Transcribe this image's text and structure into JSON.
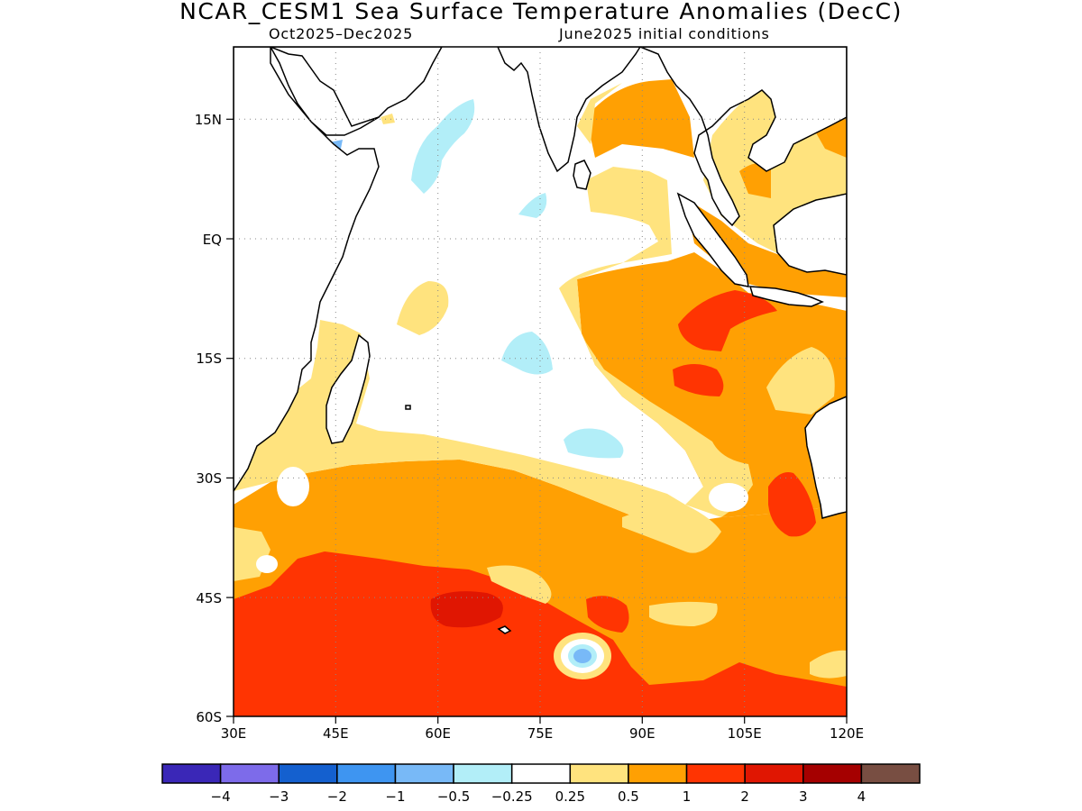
{
  "title": "NCAR_CESM1 Sea Surface Temperature Anomalies (DecC)",
  "subtitle_period": "Oct2025–Dec2025",
  "subtitle_init": "June2025 initial conditions",
  "map": {
    "lon_range": [
      30,
      120
    ],
    "lat_range": [
      -60,
      24
    ],
    "lon_ticks": [
      {
        "value": 30,
        "label": "30E"
      },
      {
        "value": 45,
        "label": "45E"
      },
      {
        "value": 60,
        "label": "60E"
      },
      {
        "value": 75,
        "label": "75E"
      },
      {
        "value": 90,
        "label": "90E"
      },
      {
        "value": 105,
        "label": "105E"
      },
      {
        "value": 120,
        "label": "120E"
      }
    ],
    "lat_ticks": [
      {
        "value": 15,
        "label": "15N"
      },
      {
        "value": 0,
        "label": "EQ"
      },
      {
        "value": -15,
        "label": "15S"
      },
      {
        "value": -30,
        "label": "30S"
      },
      {
        "value": -45,
        "label": "45S"
      },
      {
        "value": -60,
        "label": "60S"
      }
    ],
    "grid": "dotted"
  },
  "colorbar": {
    "colors": [
      "#3a27b7",
      "#7d6bea",
      "#1460cf",
      "#3e95f1",
      "#78b9f7",
      "#b2eef8",
      "#ffffff",
      "#ffe37e",
      "#ffa003",
      "#ff3402",
      "#e01602",
      "#a50000",
      "#784e42"
    ],
    "labels": [
      "−4",
      "−3",
      "−2",
      "−1",
      "−0.5",
      "−0.25",
      "0.25",
      "0.5",
      "1",
      "2",
      "3",
      "4"
    ]
  },
  "palette": {
    "pale_yellow": "#ffe37e",
    "orange": "#ffa003",
    "red_orange": "#ff3402",
    "red": "#e01602",
    "light_cyan": "#b2eef8",
    "light_blue": "#78b9f7"
  }
}
